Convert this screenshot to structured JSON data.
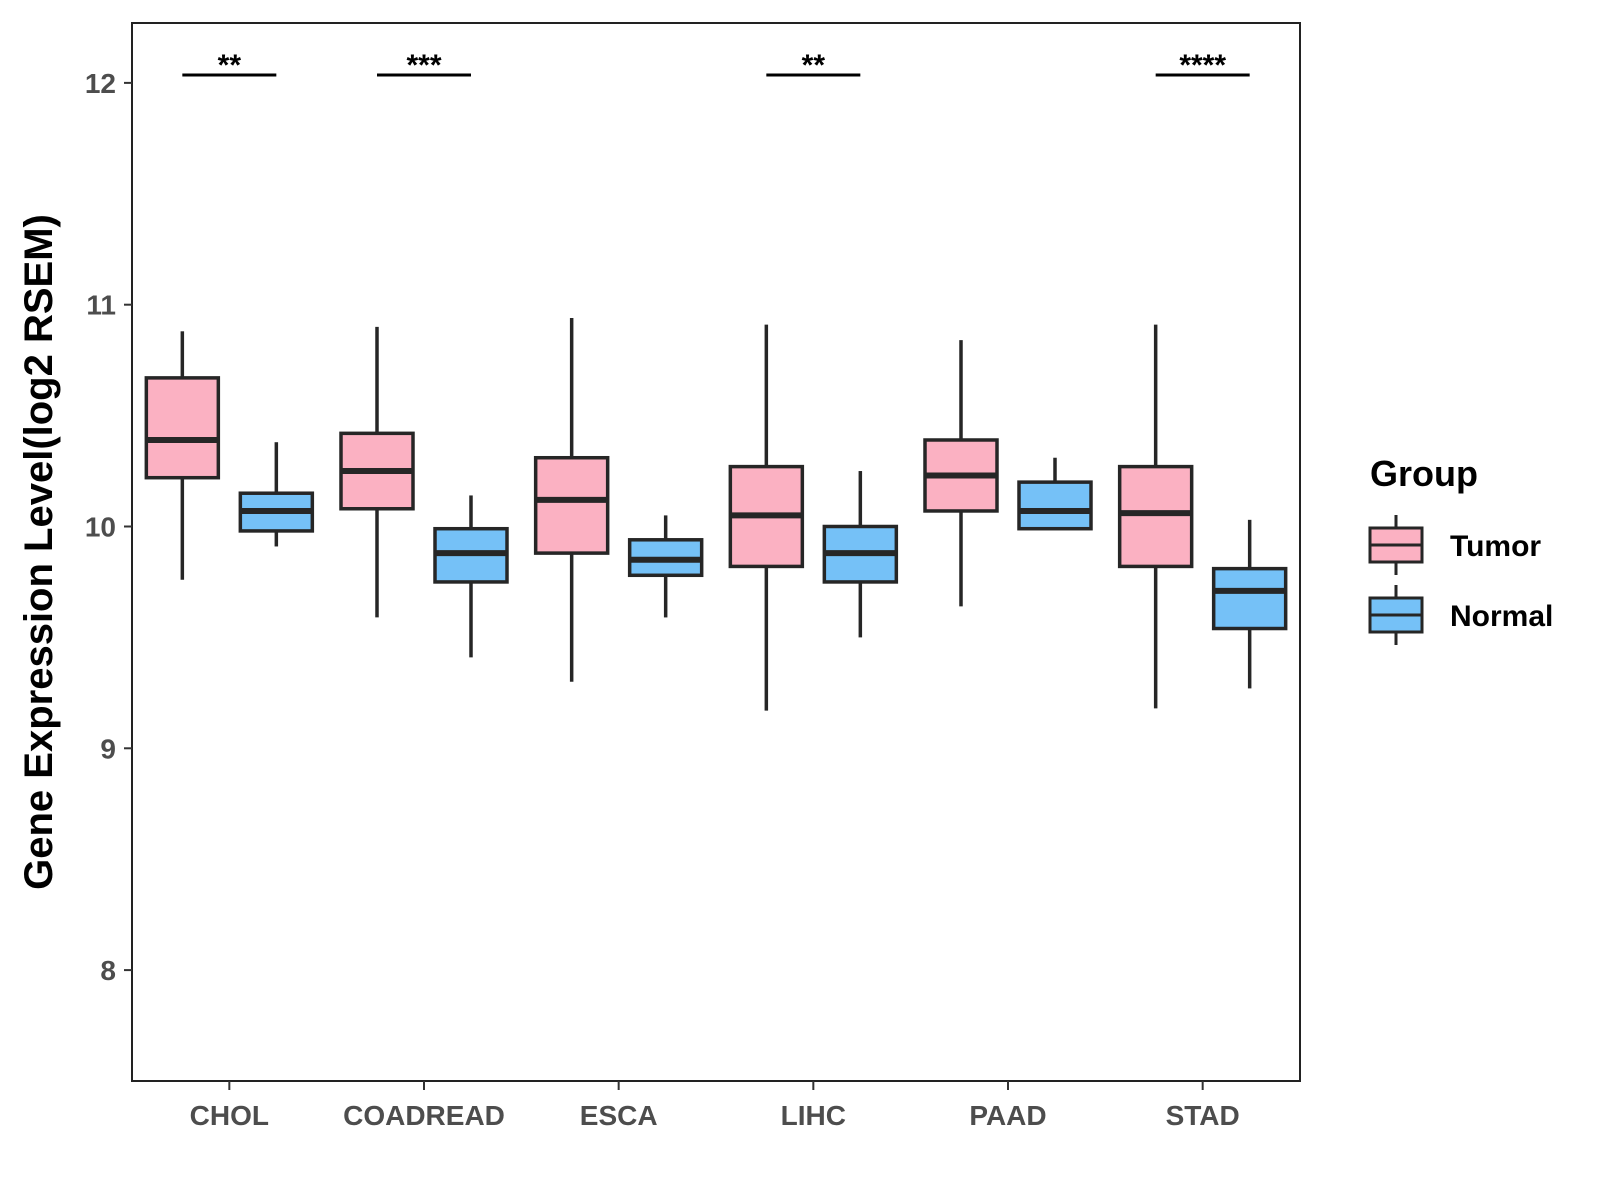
{
  "chart_data": {
    "type": "boxplot",
    "title": "",
    "xlabel": "",
    "ylabel": "Gene Expression Level(log2 RSEM)",
    "ylim": [
      7.5,
      12.27
    ],
    "yticks": [
      "8",
      "9",
      "10",
      "11",
      "12"
    ],
    "ytick_values": [
      8,
      9,
      10,
      11,
      12
    ],
    "categories": [
      "CHOL",
      "COADREAD",
      "ESCA",
      "LIHC",
      "PAAD",
      "STAD"
    ],
    "legend": {
      "title": "Group",
      "placement": "right",
      "entries": [
        {
          "name": "Tumor",
          "color": "#FBB1C2"
        },
        {
          "name": "Normal",
          "color": "#75C1F7"
        }
      ]
    },
    "series": [
      {
        "name": "Tumor",
        "color": "#FBB1C2",
        "boxes": [
          {
            "min": 9.76,
            "q1": 10.22,
            "median": 10.39,
            "q3": 10.67,
            "max": 10.88
          },
          {
            "min": 9.59,
            "q1": 10.08,
            "median": 10.25,
            "q3": 10.42,
            "max": 10.9
          },
          {
            "min": 9.3,
            "q1": 9.88,
            "median": 10.12,
            "q3": 10.31,
            "max": 10.94
          },
          {
            "min": 9.17,
            "q1": 9.82,
            "median": 10.05,
            "q3": 10.27,
            "max": 10.91
          },
          {
            "min": 9.64,
            "q1": 10.07,
            "median": 10.23,
            "q3": 10.39,
            "max": 10.84
          },
          {
            "min": 9.18,
            "q1": 9.82,
            "median": 10.06,
            "q3": 10.27,
            "max": 10.91
          }
        ]
      },
      {
        "name": "Normal",
        "color": "#75C1F7",
        "boxes": [
          {
            "min": 9.91,
            "q1": 9.98,
            "median": 10.07,
            "q3": 10.15,
            "max": 10.38
          },
          {
            "min": 9.41,
            "q1": 9.75,
            "median": 9.88,
            "q3": 9.99,
            "max": 10.14
          },
          {
            "min": 9.59,
            "q1": 9.78,
            "median": 9.85,
            "q3": 9.94,
            "max": 10.05
          },
          {
            "min": 9.5,
            "q1": 9.75,
            "median": 9.88,
            "q3": 10.0,
            "max": 10.25
          },
          {
            "min": 9.99,
            "q1": 9.99,
            "median": 10.07,
            "q3": 10.2,
            "max": 10.31
          },
          {
            "min": 9.27,
            "q1": 9.54,
            "median": 9.71,
            "q3": 9.81,
            "max": 10.03
          }
        ]
      }
    ],
    "significance": [
      "**",
      "***",
      "",
      "**",
      "",
      "****"
    ]
  }
}
